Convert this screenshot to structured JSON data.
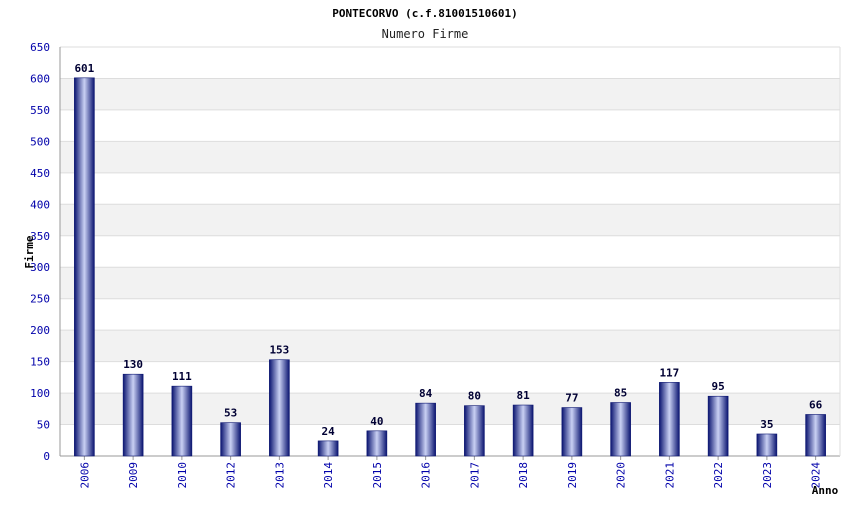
{
  "chart_data": {
    "type": "bar",
    "title": "PONTECORVO (c.f.81001510601)",
    "subtitle": "Numero Firme",
    "xlabel": "Anno",
    "ylabel": "Firme",
    "categories": [
      "2006",
      "2009",
      "2010",
      "2012",
      "2013",
      "2014",
      "2015",
      "2016",
      "2017",
      "2018",
      "2019",
      "2020",
      "2021",
      "2022",
      "2023",
      "2024"
    ],
    "values": [
      601,
      130,
      111,
      53,
      153,
      24,
      40,
      84,
      80,
      81,
      77,
      85,
      117,
      95,
      35,
      66
    ],
    "ylim": [
      0,
      650
    ],
    "yticks": [
      0,
      50,
      100,
      150,
      200,
      250,
      300,
      350,
      400,
      450,
      500,
      550,
      600,
      650
    ],
    "grid": true,
    "bar_color": "#1a2a9a",
    "bar_highlight": "#d6dcf5",
    "band_color": "#f2f2f2",
    "tick_color": "#0000aa"
  }
}
